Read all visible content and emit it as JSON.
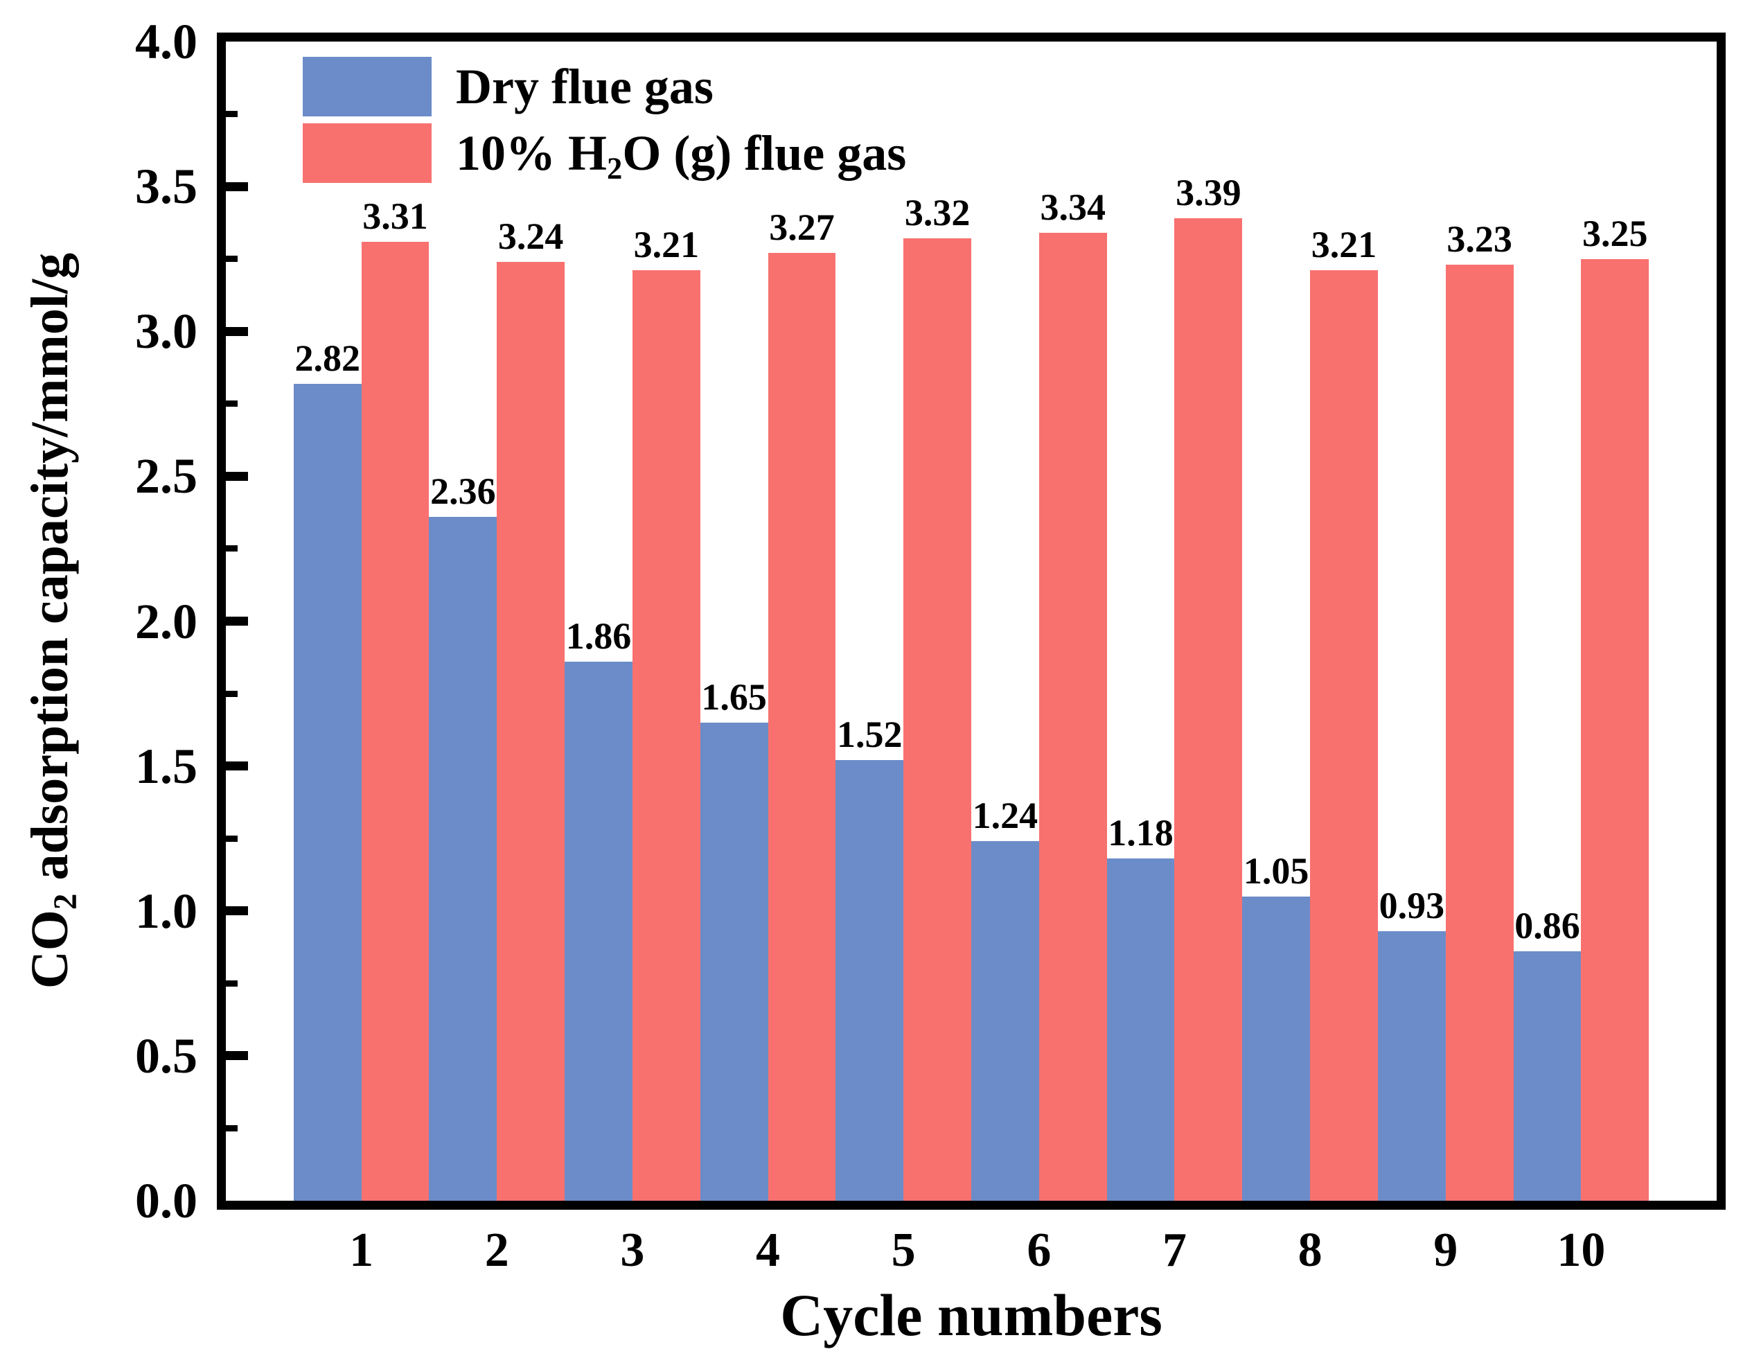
{
  "figure": {
    "y_axis": {
      "title_prefix": "CO",
      "title_sub": "2",
      "title_suffix": " adsorption capacity/mmol/g",
      "tick_labels": [
        "0.0",
        "0.5",
        "1.0",
        "1.5",
        "2.0",
        "2.5",
        "3.0",
        "3.5",
        "4.0"
      ]
    },
    "x_axis": {
      "title": "Cycle numbers",
      "tick_labels": [
        "1",
        "2",
        "3",
        "4",
        "5",
        "6",
        "7",
        "8",
        "9",
        "10"
      ]
    },
    "legend": {
      "series1": {
        "label": "Dry flue gas",
        "color": "#6B8CC8"
      },
      "series2": {
        "prefix": "10% H",
        "sub": "2",
        "suffix": "O (g) flue gas",
        "color": "#F8716F"
      }
    }
  },
  "chart_data": {
    "type": "bar",
    "title": "",
    "xlabel": "Cycle numbers",
    "ylabel": "CO2 adsorption capacity/mmol/g",
    "categories": [
      1,
      2,
      3,
      4,
      5,
      6,
      7,
      8,
      9,
      10
    ],
    "series": [
      {
        "name": "Dry flue gas",
        "color": "#6B8CC8",
        "values": [
          2.82,
          2.36,
          1.86,
          1.65,
          1.52,
          1.24,
          1.18,
          1.05,
          0.93,
          0.86
        ]
      },
      {
        "name": "10% H2O (g) flue gas",
        "color": "#F8716F",
        "values": [
          3.31,
          3.24,
          3.21,
          3.27,
          3.32,
          3.34,
          3.39,
          3.21,
          3.23,
          3.25
        ]
      }
    ],
    "ylim": [
      0,
      4
    ],
    "ytick_major_step": 0.5,
    "ytick_minor_step": 0.25,
    "bar_value_labels": true,
    "grid": false,
    "legend_position": "top-left",
    "frame": "full-box"
  }
}
